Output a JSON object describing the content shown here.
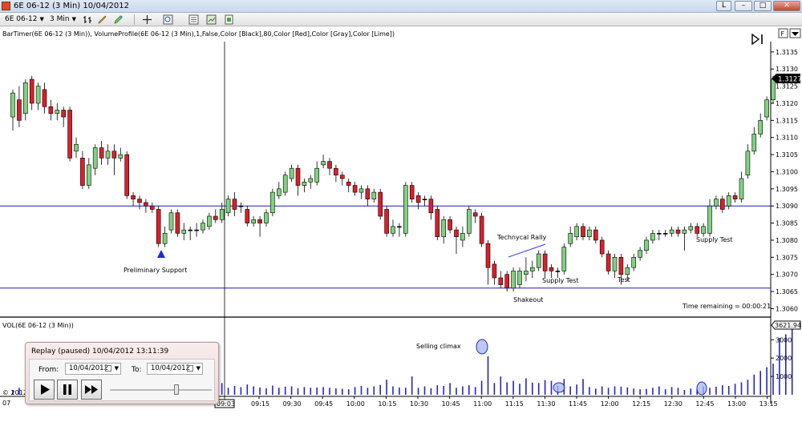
{
  "window": {
    "title": "6E 06-12 (3 Min)  10/04/2012",
    "controls": [
      "L",
      "–",
      "□",
      "✕"
    ]
  },
  "toolbar": {
    "instrument": "6E 06-12",
    "interval": "3 Min",
    "icons": [
      "bar-type-icon",
      "draw-pencil-icon",
      "highlight-icon",
      "crosshair-icon",
      "zoom-icon",
      "properties-icon",
      "data-box-icon",
      "indicator-icon"
    ]
  },
  "chart": {
    "indicator_label": "BarTimer(6E 06-12 (3 Min)), VolumeProfile(6E 06-12 (3 Min),1,False,Color [Black],80,Color [Red],Color [Gray],Color [Lime])",
    "volume_label": "VOL(6E 06-12 (3 Min))",
    "time_remaining": "Time remaining = 00:00:21",
    "current_price": "1.3127",
    "current_volume": "3621.94",
    "year_fragment": "07",
    "copyright_fragment": "© 2012",
    "crosshair_time": "09:03",
    "annotations": [
      "Preliminary Support",
      "Technycal Rally",
      "Supply Test",
      "Shakeout",
      "Test",
      "Supply Test",
      "Selling climax"
    ],
    "colors": {
      "up": "#7fd37f",
      "down": "#d9202a",
      "hline": "#1c1cb8",
      "volume": "#2424c0"
    }
  },
  "chart_data": [
    {
      "type": "candlestick",
      "title": "6E 06-12 (3 Min)",
      "ylim": [
        1.3058,
        1.3138
      ],
      "y_ticks": [
        "1.3060",
        "1.3065",
        "1.3070",
        "1.3075",
        "1.3080",
        "1.3085",
        "1.3090",
        "1.3095",
        "1.3100",
        "1.3105",
        "1.3110",
        "1.3115",
        "1.3120",
        "1.3125",
        "1.3130",
        "1.3135"
      ],
      "x_ticks": [
        "09:15",
        "09:30",
        "09:45",
        "10:00",
        "10:15",
        "10:30",
        "10:45",
        "11:00",
        "11:15",
        "11:30",
        "11:45",
        "12:00",
        "12:15",
        "12:30",
        "12:45",
        "13:00",
        "13:15"
      ],
      "horizontal_lines": [
        1.309,
        1.3066
      ],
      "candles": [
        {
          "o": 1.3116,
          "c": 1.3123,
          "h": 1.3124,
          "l": 1.3112
        },
        {
          "o": 1.3121,
          "c": 1.3115,
          "h": 1.3125,
          "l": 1.3113
        },
        {
          "o": 1.3117,
          "c": 1.3126,
          "h": 1.3127,
          "l": 1.3115
        },
        {
          "o": 1.3127,
          "c": 1.312,
          "h": 1.3128,
          "l": 1.3118
        },
        {
          "o": 1.312,
          "c": 1.3125,
          "h": 1.3126,
          "l": 1.3118
        },
        {
          "o": 1.3124,
          "c": 1.3119,
          "h": 1.3126,
          "l": 1.3117
        },
        {
          "o": 1.3119,
          "c": 1.3117,
          "h": 1.3121,
          "l": 1.3115
        },
        {
          "o": 1.3117,
          "c": 1.3118,
          "h": 1.312,
          "l": 1.3115
        },
        {
          "o": 1.3118,
          "c": 1.3116,
          "h": 1.3119,
          "l": 1.3113
        },
        {
          "o": 1.3118,
          "c": 1.3104,
          "h": 1.3119,
          "l": 1.3103
        },
        {
          "o": 1.3106,
          "c": 1.3108,
          "h": 1.311,
          "l": 1.3104
        },
        {
          "o": 1.3104,
          "c": 1.3096,
          "h": 1.3106,
          "l": 1.3095
        },
        {
          "o": 1.3096,
          "c": 1.3102,
          "h": 1.3104,
          "l": 1.3095
        },
        {
          "o": 1.3101,
          "c": 1.3107,
          "h": 1.3108,
          "l": 1.3099
        },
        {
          "o": 1.3107,
          "c": 1.3104,
          "h": 1.3109,
          "l": 1.3102
        },
        {
          "o": 1.3104,
          "c": 1.3106,
          "h": 1.3108,
          "l": 1.3102
        },
        {
          "o": 1.3106,
          "c": 1.3104,
          "h": 1.3108,
          "l": 1.3099
        },
        {
          "o": 1.3104,
          "c": 1.3105,
          "h": 1.3107,
          "l": 1.3103
        },
        {
          "o": 1.3105,
          "c": 1.3093,
          "h": 1.3106,
          "l": 1.3092
        },
        {
          "o": 1.3093,
          "c": 1.3092,
          "h": 1.3094,
          "l": 1.309
        },
        {
          "o": 1.3092,
          "c": 1.3091,
          "h": 1.3093,
          "l": 1.3089
        },
        {
          "o": 1.3091,
          "c": 1.309,
          "h": 1.3092,
          "l": 1.3088
        },
        {
          "o": 1.309,
          "c": 1.3089,
          "h": 1.3091,
          "l": 1.3088
        },
        {
          "o": 1.3089,
          "c": 1.3079,
          "h": 1.309,
          "l": 1.3078
        },
        {
          "o": 1.3079,
          "c": 1.3082,
          "h": 1.3084,
          "l": 1.3078
        },
        {
          "o": 1.3083,
          "c": 1.3088,
          "h": 1.3089,
          "l": 1.3082
        },
        {
          "o": 1.3088,
          "c": 1.3082,
          "h": 1.3089,
          "l": 1.3081
        },
        {
          "o": 1.3082,
          "c": 1.3083,
          "h": 1.3085,
          "l": 1.308
        },
        {
          "o": 1.3083,
          "c": 1.3083,
          "h": 1.3084,
          "l": 1.308
        },
        {
          "o": 1.3083,
          "c": 1.3083,
          "h": 1.3085,
          "l": 1.3081
        },
        {
          "o": 1.3083,
          "c": 1.3085,
          "h": 1.3086,
          "l": 1.3082
        },
        {
          "o": 1.3084,
          "c": 1.3087,
          "h": 1.3088,
          "l": 1.3083
        },
        {
          "o": 1.3087,
          "c": 1.3086,
          "h": 1.3089,
          "l": 1.3085
        },
        {
          "o": 1.3086,
          "c": 1.3089,
          "h": 1.3091,
          "l": 1.3085
        },
        {
          "o": 1.3088,
          "c": 1.3092,
          "h": 1.3093,
          "l": 1.3087
        },
        {
          "o": 1.3092,
          "c": 1.3089,
          "h": 1.3094,
          "l": 1.3087
        },
        {
          "o": 1.309,
          "c": 1.309,
          "h": 1.3091,
          "l": 1.3088
        },
        {
          "o": 1.3089,
          "c": 1.3085,
          "h": 1.309,
          "l": 1.3084
        },
        {
          "o": 1.3085,
          "c": 1.3086,
          "h": 1.3087,
          "l": 1.3084
        },
        {
          "o": 1.3086,
          "c": 1.3085,
          "h": 1.3087,
          "l": 1.3081
        },
        {
          "o": 1.3085,
          "c": 1.3088,
          "h": 1.3089,
          "l": 1.3084
        },
        {
          "o": 1.3088,
          "c": 1.3094,
          "h": 1.3095,
          "l": 1.3087
        },
        {
          "o": 1.3093,
          "c": 1.3095,
          "h": 1.3097,
          "l": 1.3092
        },
        {
          "o": 1.3094,
          "c": 1.3099,
          "h": 1.31,
          "l": 1.3093
        },
        {
          "o": 1.3098,
          "c": 1.3101,
          "h": 1.3102,
          "l": 1.3097
        },
        {
          "o": 1.3101,
          "c": 1.3096,
          "h": 1.3102,
          "l": 1.3093
        },
        {
          "o": 1.3096,
          "c": 1.3097,
          "h": 1.3098,
          "l": 1.3094
        },
        {
          "o": 1.3097,
          "c": 1.3098,
          "h": 1.3099,
          "l": 1.3095
        },
        {
          "o": 1.3097,
          "c": 1.3101,
          "h": 1.3103,
          "l": 1.3096
        },
        {
          "o": 1.3102,
          "c": 1.3103,
          "h": 1.3105,
          "l": 1.3101
        },
        {
          "o": 1.3103,
          "c": 1.3101,
          "h": 1.3104,
          "l": 1.3099
        },
        {
          "o": 1.3101,
          "c": 1.3099,
          "h": 1.3102,
          "l": 1.3097
        },
        {
          "o": 1.3099,
          "c": 1.3098,
          "h": 1.31,
          "l": 1.3096
        },
        {
          "o": 1.3097,
          "c": 1.3096,
          "h": 1.3098,
          "l": 1.3094
        },
        {
          "o": 1.3096,
          "c": 1.3094,
          "h": 1.3097,
          "l": 1.3093
        },
        {
          "o": 1.3094,
          "c": 1.3095,
          "h": 1.3096,
          "l": 1.3092
        },
        {
          "o": 1.3095,
          "c": 1.3092,
          "h": 1.3096,
          "l": 1.309
        },
        {
          "o": 1.3092,
          "c": 1.3094,
          "h": 1.3095,
          "l": 1.3091
        },
        {
          "o": 1.3094,
          "c": 1.3087,
          "h": 1.3095,
          "l": 1.3086
        },
        {
          "o": 1.3089,
          "c": 1.3082,
          "h": 1.309,
          "l": 1.3081
        },
        {
          "o": 1.3082,
          "c": 1.3084,
          "h": 1.3086,
          "l": 1.3081
        },
        {
          "o": 1.3084,
          "c": 1.3084,
          "h": 1.3085,
          "l": 1.3081
        },
        {
          "o": 1.3082,
          "c": 1.3096,
          "h": 1.3097,
          "l": 1.3081
        },
        {
          "o": 1.3096,
          "c": 1.3092,
          "h": 1.3097,
          "l": 1.3091
        },
        {
          "o": 1.3093,
          "c": 1.3091,
          "h": 1.3094,
          "l": 1.3089
        },
        {
          "o": 1.3092,
          "c": 1.3092,
          "h": 1.3093,
          "l": 1.309
        },
        {
          "o": 1.3092,
          "c": 1.3088,
          "h": 1.3093,
          "l": 1.3086
        },
        {
          "o": 1.3089,
          "c": 1.3081,
          "h": 1.309,
          "l": 1.308
        },
        {
          "o": 1.3081,
          "c": 1.3086,
          "h": 1.3087,
          "l": 1.3079
        },
        {
          "o": 1.3086,
          "c": 1.3083,
          "h": 1.3087,
          "l": 1.3082
        },
        {
          "o": 1.3083,
          "c": 1.3081,
          "h": 1.3084,
          "l": 1.3076
        },
        {
          "o": 1.308,
          "c": 1.3082,
          "h": 1.3084,
          "l": 1.3078
        },
        {
          "o": 1.3082,
          "c": 1.3089,
          "h": 1.309,
          "l": 1.3081
        },
        {
          "o": 1.3088,
          "c": 1.3087,
          "h": 1.3089,
          "l": 1.3085
        },
        {
          "o": 1.3087,
          "c": 1.3079,
          "h": 1.3088,
          "l": 1.3078
        },
        {
          "o": 1.3079,
          "c": 1.3072,
          "h": 1.308,
          "l": 1.3067
        },
        {
          "o": 1.3073,
          "c": 1.3069,
          "h": 1.3074,
          "l": 1.3067
        },
        {
          "o": 1.3069,
          "c": 1.3067,
          "h": 1.3071,
          "l": 1.3066
        },
        {
          "o": 1.307,
          "c": 1.3066,
          "h": 1.3071,
          "l": 1.3065
        },
        {
          "o": 1.3066,
          "c": 1.3071,
          "h": 1.3072,
          "l": 1.3065
        },
        {
          "o": 1.3067,
          "c": 1.3071,
          "h": 1.3072,
          "l": 1.3066
        },
        {
          "o": 1.307,
          "c": 1.3071,
          "h": 1.3075,
          "l": 1.3068
        },
        {
          "o": 1.3071,
          "c": 1.3072,
          "h": 1.3074,
          "l": 1.3069
        },
        {
          "o": 1.3072,
          "c": 1.3076,
          "h": 1.3077,
          "l": 1.3071
        },
        {
          "o": 1.3076,
          "c": 1.3071,
          "h": 1.3077,
          "l": 1.3069
        },
        {
          "o": 1.3072,
          "c": 1.3071,
          "h": 1.3073,
          "l": 1.3069
        },
        {
          "o": 1.3071,
          "c": 1.3071,
          "h": 1.3072,
          "l": 1.3069
        },
        {
          "o": 1.3071,
          "c": 1.3078,
          "h": 1.3079,
          "l": 1.307
        },
        {
          "o": 1.3079,
          "c": 1.3082,
          "h": 1.3084,
          "l": 1.3078
        },
        {
          "o": 1.3081,
          "c": 1.3084,
          "h": 1.3085,
          "l": 1.308
        },
        {
          "o": 1.3084,
          "c": 1.3081,
          "h": 1.3085,
          "l": 1.308
        },
        {
          "o": 1.3081,
          "c": 1.3083,
          "h": 1.3084,
          "l": 1.308
        },
        {
          "o": 1.3083,
          "c": 1.308,
          "h": 1.3084,
          "l": 1.3079
        },
        {
          "o": 1.308,
          "c": 1.3076,
          "h": 1.3081,
          "l": 1.3075
        },
        {
          "o": 1.3076,
          "c": 1.3071,
          "h": 1.3077,
          "l": 1.307
        },
        {
          "o": 1.3071,
          "c": 1.3075,
          "h": 1.3076,
          "l": 1.3069
        },
        {
          "o": 1.3075,
          "c": 1.307,
          "h": 1.3076,
          "l": 1.3067
        },
        {
          "o": 1.307,
          "c": 1.3072,
          "h": 1.3073,
          "l": 1.3068
        },
        {
          "o": 1.3072,
          "c": 1.3075,
          "h": 1.3076,
          "l": 1.3071
        },
        {
          "o": 1.3075,
          "c": 1.3077,
          "h": 1.3078,
          "l": 1.3074
        },
        {
          "o": 1.3077,
          "c": 1.308,
          "h": 1.3081,
          "l": 1.3076
        },
        {
          "o": 1.308,
          "c": 1.3082,
          "h": 1.3083,
          "l": 1.3079
        },
        {
          "o": 1.3082,
          "c": 1.3082,
          "h": 1.3083,
          "l": 1.308
        },
        {
          "o": 1.3082,
          "c": 1.3082,
          "h": 1.3083,
          "l": 1.3081
        },
        {
          "o": 1.3082,
          "c": 1.3083,
          "h": 1.3084,
          "l": 1.3081
        },
        {
          "o": 1.3083,
          "c": 1.3082,
          "h": 1.3084,
          "l": 1.3081
        },
        {
          "o": 1.3082,
          "c": 1.3083,
          "h": 1.3084,
          "l": 1.3077
        },
        {
          "o": 1.3083,
          "c": 1.3084,
          "h": 1.3085,
          "l": 1.3082
        },
        {
          "o": 1.3084,
          "c": 1.3082,
          "h": 1.3085,
          "l": 1.3081
        },
        {
          "o": 1.3082,
          "c": 1.3084,
          "h": 1.3085,
          "l": 1.3081
        },
        {
          "o": 1.3082,
          "c": 1.309,
          "h": 1.3092,
          "l": 1.3081
        },
        {
          "o": 1.309,
          "c": 1.3092,
          "h": 1.3093,
          "l": 1.3089
        },
        {
          "o": 1.3092,
          "c": 1.3089,
          "h": 1.3093,
          "l": 1.3088
        },
        {
          "o": 1.309,
          "c": 1.3093,
          "h": 1.3094,
          "l": 1.3089
        },
        {
          "o": 1.3093,
          "c": 1.3092,
          "h": 1.3094,
          "l": 1.3091
        },
        {
          "o": 1.3092,
          "c": 1.3098,
          "h": 1.31,
          "l": 1.3091
        },
        {
          "o": 1.3099,
          "c": 1.3106,
          "h": 1.3108,
          "l": 1.3098
        },
        {
          "o": 1.3106,
          "c": 1.3111,
          "h": 1.3113,
          "l": 1.3105
        },
        {
          "o": 1.3111,
          "c": 1.3115,
          "h": 1.3117,
          "l": 1.311
        },
        {
          "o": 1.3116,
          "c": 1.3121,
          "h": 1.3122,
          "l": 1.3115
        },
        {
          "o": 1.3121,
          "c": 1.3127,
          "h": 1.3128,
          "l": 1.312
        }
      ]
    },
    {
      "type": "bar",
      "title": "VOL(6E 06-12 (3 Min))",
      "ylim": [
        0,
        3800
      ],
      "y_ticks": [
        "1000",
        "2000",
        "3000"
      ],
      "values": [
        260,
        380,
        300,
        340,
        420,
        320,
        380,
        360,
        300,
        420,
        380,
        360,
        340,
        410,
        300,
        460,
        380,
        300,
        340,
        280,
        360,
        330,
        520,
        420,
        360,
        300,
        330,
        350,
        420,
        380,
        360,
        460,
        300,
        640,
        380,
        480,
        420,
        560,
        460,
        400,
        360,
        500,
        380,
        440,
        460,
        360,
        420,
        380,
        400,
        420,
        380,
        350,
        330,
        300,
        420,
        480,
        380,
        460,
        540,
        820,
        460,
        400,
        380,
        1000,
        380,
        460,
        360,
        520,
        480,
        640,
        380,
        460,
        520,
        420,
        760,
        2100,
        640,
        1000,
        680,
        760,
        600,
        900,
        660,
        640,
        800,
        760,
        480,
        860,
        460,
        560,
        860,
        420,
        340,
        460,
        380,
        460,
        440,
        400,
        340,
        300,
        320,
        380,
        460,
        300,
        420,
        380,
        260,
        340,
        300,
        460,
        380,
        440,
        520,
        480,
        600,
        680,
        820,
        1100,
        1300,
        1500,
        1700,
        3100,
        3300,
        3622
      ]
    }
  ]
}
